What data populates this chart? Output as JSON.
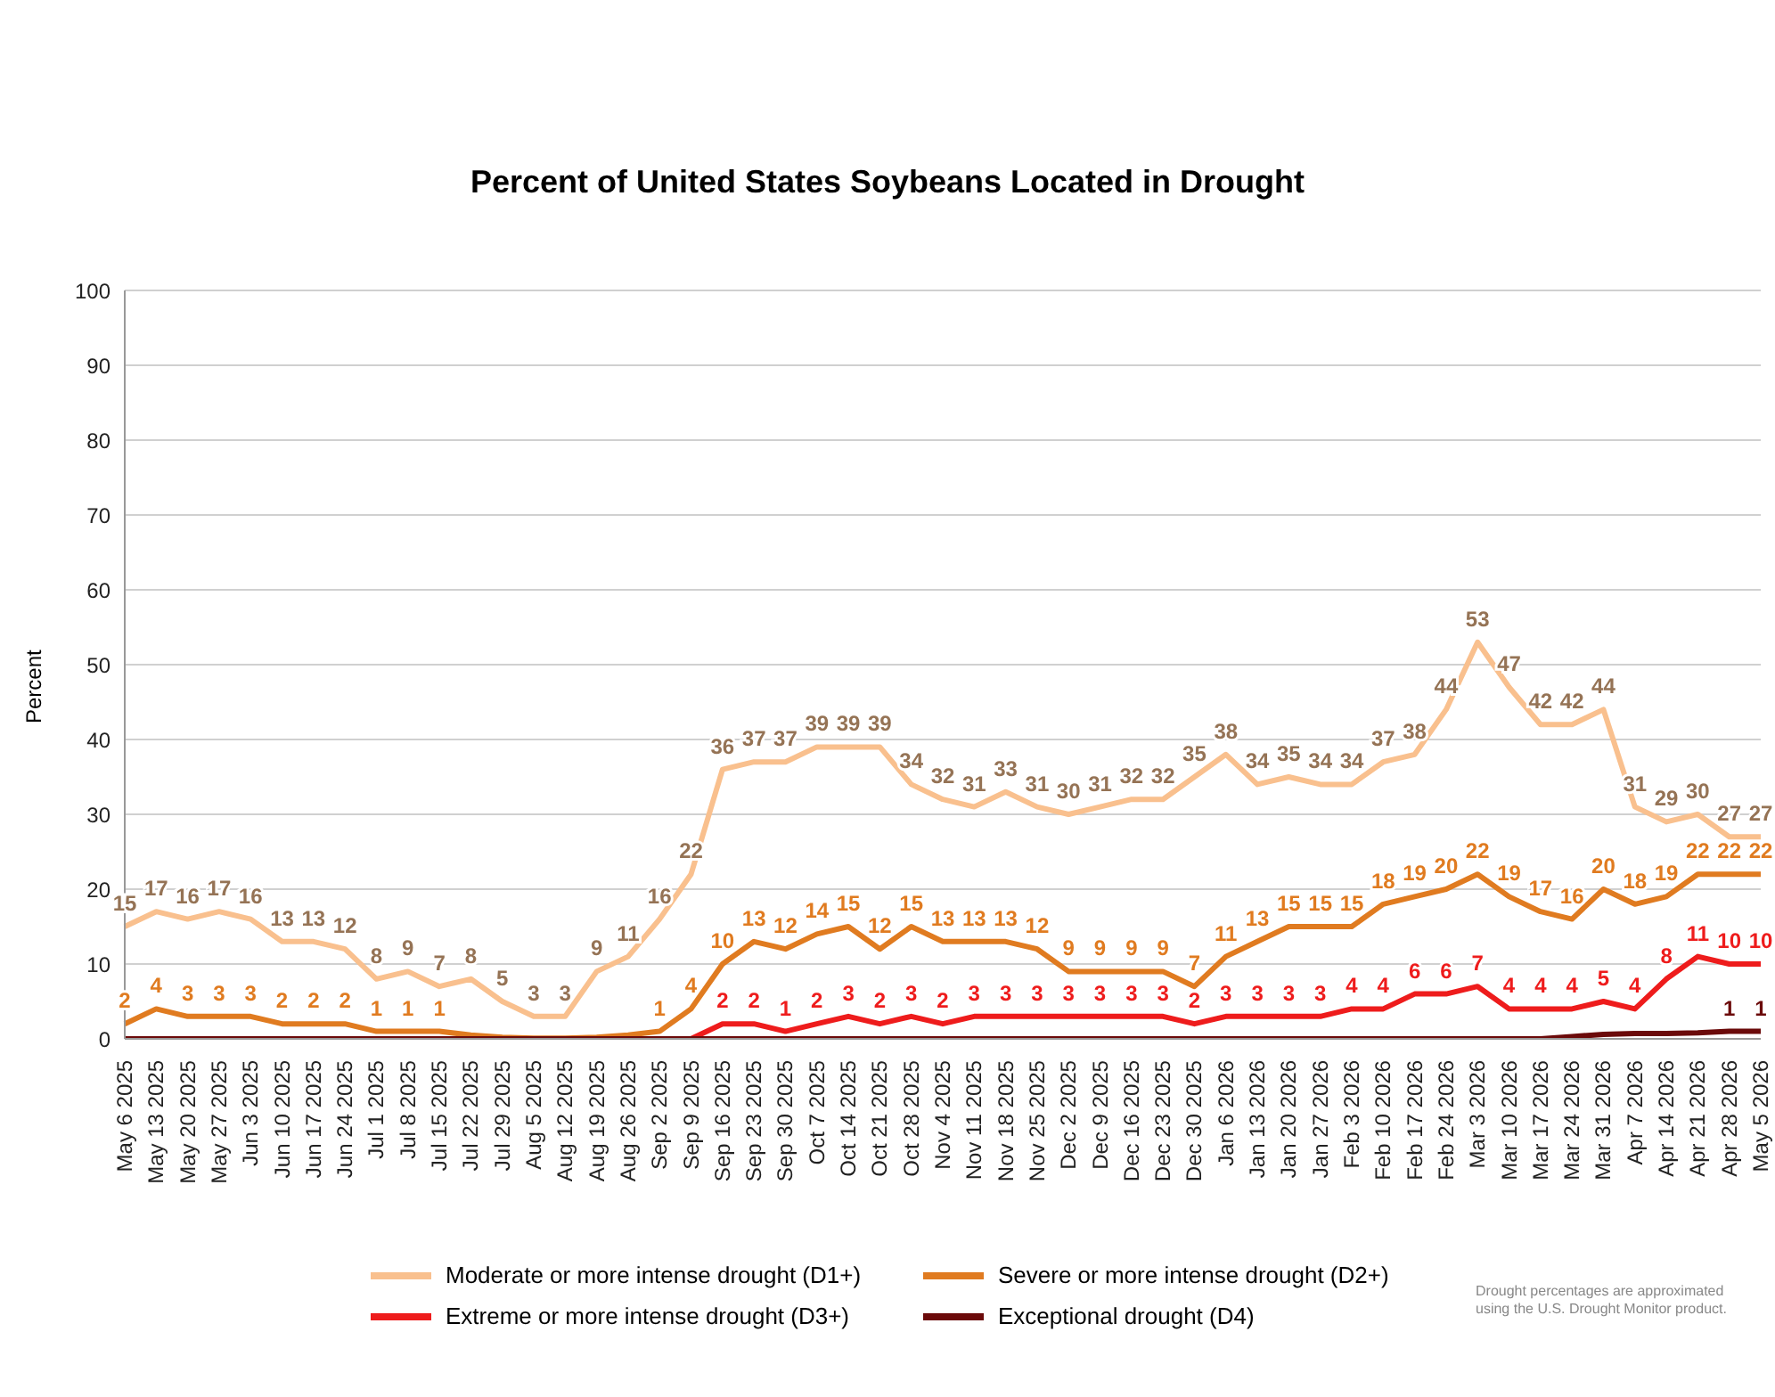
{
  "chart_data": {
    "type": "line",
    "title": "Percent of United States Soybeans Located in Drought",
    "ylabel": "Percent",
    "categories": [
      "May 6 2025",
      "May 13 2025",
      "May 20 2025",
      "May 27 2025",
      "Jun 3 2025",
      "Jun 10 2025",
      "Jun 17 2025",
      "Jun 24 2025",
      "Jul 1 2025",
      "Jul 8 2025",
      "Jul 15 2025",
      "Jul 22 2025",
      "Jul 29 2025",
      "Aug 5 2025",
      "Aug 12 2025",
      "Aug 19 2025",
      "Aug 26 2025",
      "Sep 2 2025",
      "Sep 9 2025",
      "Sep 16 2025",
      "Sep 23 2025",
      "Sep 30 2025",
      "Oct 7 2025",
      "Oct 14 2025",
      "Oct 21 2025",
      "Oct 28 2025",
      "Nov 4 2025",
      "Nov 11 2025",
      "Nov 18 2025",
      "Nov 25 2025",
      "Dec 2 2025",
      "Dec 9 2025",
      "Dec 16 2025",
      "Dec 23 2025",
      "Dec 30 2025",
      "Jan 6 2026",
      "Jan 13 2026",
      "Jan 20 2026",
      "Jan 27 2026",
      "Feb 3 2026",
      "Feb 10 2026",
      "Feb 17 2026",
      "Feb 24 2026",
      "Mar 3 2026",
      "Mar 10 2026",
      "Mar 17 2026",
      "Mar 24 2026",
      "Mar 31 2026",
      "Apr 7 2026",
      "Apr 14 2026",
      "Apr 21 2026",
      "Apr 28 2026",
      "May 5 2026"
    ],
    "series": [
      {
        "name": "Moderate or more intense drought (D1+)",
        "color": "#f9c08e",
        "values": [
          15,
          17,
          16,
          17,
          16,
          13,
          13,
          12,
          8,
          9,
          7,
          8,
          5,
          3,
          3,
          9,
          11,
          16,
          22,
          36,
          37,
          37,
          39,
          39,
          39,
          34,
          32,
          31,
          33,
          31,
          30,
          31,
          32,
          32,
          35,
          38,
          34,
          35,
          34,
          34,
          37,
          38,
          44,
          53,
          47,
          42,
          42,
          44,
          31,
          29,
          30,
          27,
          27
        ],
        "value_labels": [
          "15",
          "17",
          "16",
          "17",
          "16",
          "13",
          "13",
          "12",
          "8",
          "9",
          "7",
          "8",
          "5",
          "3",
          "3",
          "9",
          "11",
          "16",
          "22",
          "36",
          "37",
          "37",
          "39",
          "39",
          "39",
          "34",
          "32",
          "31",
          "33",
          "31",
          "30",
          "31",
          "32",
          "32",
          "35",
          "38",
          "34",
          "35",
          "34",
          "34",
          "37",
          "38",
          "44",
          "53",
          "47",
          "42",
          "42",
          "44",
          "31",
          "29",
          "30",
          "27",
          "27"
        ]
      },
      {
        "name": "Severe or more intense drought (D2+)",
        "color": "#e07b20",
        "values": [
          2,
          4,
          3,
          3,
          3,
          2,
          2,
          2,
          1,
          1,
          1,
          0.5,
          0.2,
          0.1,
          0.1,
          0.2,
          0.5,
          1,
          4,
          10,
          13,
          12,
          14,
          15,
          12,
          15,
          13,
          13,
          13,
          12,
          9,
          9,
          9,
          9,
          7,
          11,
          13,
          15,
          15,
          15,
          18,
          19,
          20,
          22,
          19,
          17,
          16,
          20,
          18,
          19,
          22,
          22,
          22
        ],
        "value_labels": [
          "2",
          "4",
          "3",
          "3",
          "3",
          "2",
          "2",
          "2",
          "1",
          "1",
          "1",
          null,
          null,
          null,
          null,
          null,
          null,
          "1",
          "4",
          "10",
          "13",
          "12",
          "14",
          "15",
          "12",
          "15",
          "13",
          "13",
          "13",
          "12",
          "9",
          "9",
          "9",
          "9",
          "7",
          "11",
          "13",
          "15",
          "15",
          "15",
          "18",
          "19",
          "20",
          "22",
          "19",
          "17",
          "16",
          "20",
          "18",
          "19",
          "22",
          "22",
          "22"
        ]
      },
      {
        "name": "Extreme or more intense drought (D3+)",
        "color": "#ee1c1c",
        "values": [
          null,
          null,
          null,
          null,
          null,
          null,
          null,
          null,
          null,
          null,
          null,
          null,
          null,
          null,
          null,
          null,
          null,
          null,
          0,
          2,
          2,
          1,
          2,
          3,
          2,
          3,
          2,
          3,
          3,
          3,
          3,
          3,
          3,
          3,
          2,
          3,
          3,
          3,
          3,
          4,
          4,
          6,
          6,
          7,
          4,
          4,
          4,
          5,
          4,
          8,
          11,
          10,
          10
        ],
        "value_labels": [
          null,
          null,
          null,
          null,
          null,
          null,
          null,
          null,
          null,
          null,
          null,
          null,
          null,
          null,
          null,
          null,
          null,
          null,
          null,
          "2",
          "2",
          "1",
          "2",
          "3",
          "2",
          "3",
          "2",
          "3",
          "3",
          "3",
          "3",
          "3",
          "3",
          "3",
          "2",
          "3",
          "3",
          "3",
          "3",
          "4",
          "4",
          "6",
          "6",
          "7",
          "4",
          "4",
          "4",
          "5",
          "4",
          "8",
          "11",
          "10",
          "10"
        ]
      },
      {
        "name": "Exceptional drought (D4)",
        "color": "#6b0a0a",
        "values": [
          0,
          0,
          0,
          0,
          0,
          0,
          0,
          0,
          0,
          0,
          0,
          0,
          0,
          0,
          0,
          0,
          0,
          0,
          0,
          0,
          0,
          0,
          0,
          0,
          0,
          0,
          0,
          0,
          0,
          0,
          0,
          0,
          0,
          0,
          0,
          0,
          0,
          0,
          0,
          0,
          0,
          0,
          0,
          0,
          0,
          0,
          0.3,
          0.6,
          0.7,
          0.7,
          0.8,
          1,
          1
        ],
        "value_labels": [
          null,
          null,
          null,
          null,
          null,
          null,
          null,
          null,
          null,
          null,
          null,
          null,
          null,
          null,
          null,
          null,
          null,
          null,
          null,
          null,
          null,
          null,
          null,
          null,
          null,
          null,
          null,
          null,
          null,
          null,
          null,
          null,
          null,
          null,
          null,
          null,
          null,
          null,
          null,
          null,
          null,
          null,
          null,
          null,
          null,
          null,
          null,
          null,
          null,
          null,
          null,
          "1",
          "1"
        ]
      }
    ],
    "ylim": [
      0,
      100
    ],
    "yticks": [
      0,
      10,
      20,
      30,
      40,
      50,
      60,
      70,
      80,
      90,
      100
    ],
    "grid": "y",
    "legend": "bottom",
    "marker": "none",
    "line_style": "solid",
    "annotations": [
      "Drought percentages are approximated using the U.S. Drought Monitor product."
    ]
  }
}
